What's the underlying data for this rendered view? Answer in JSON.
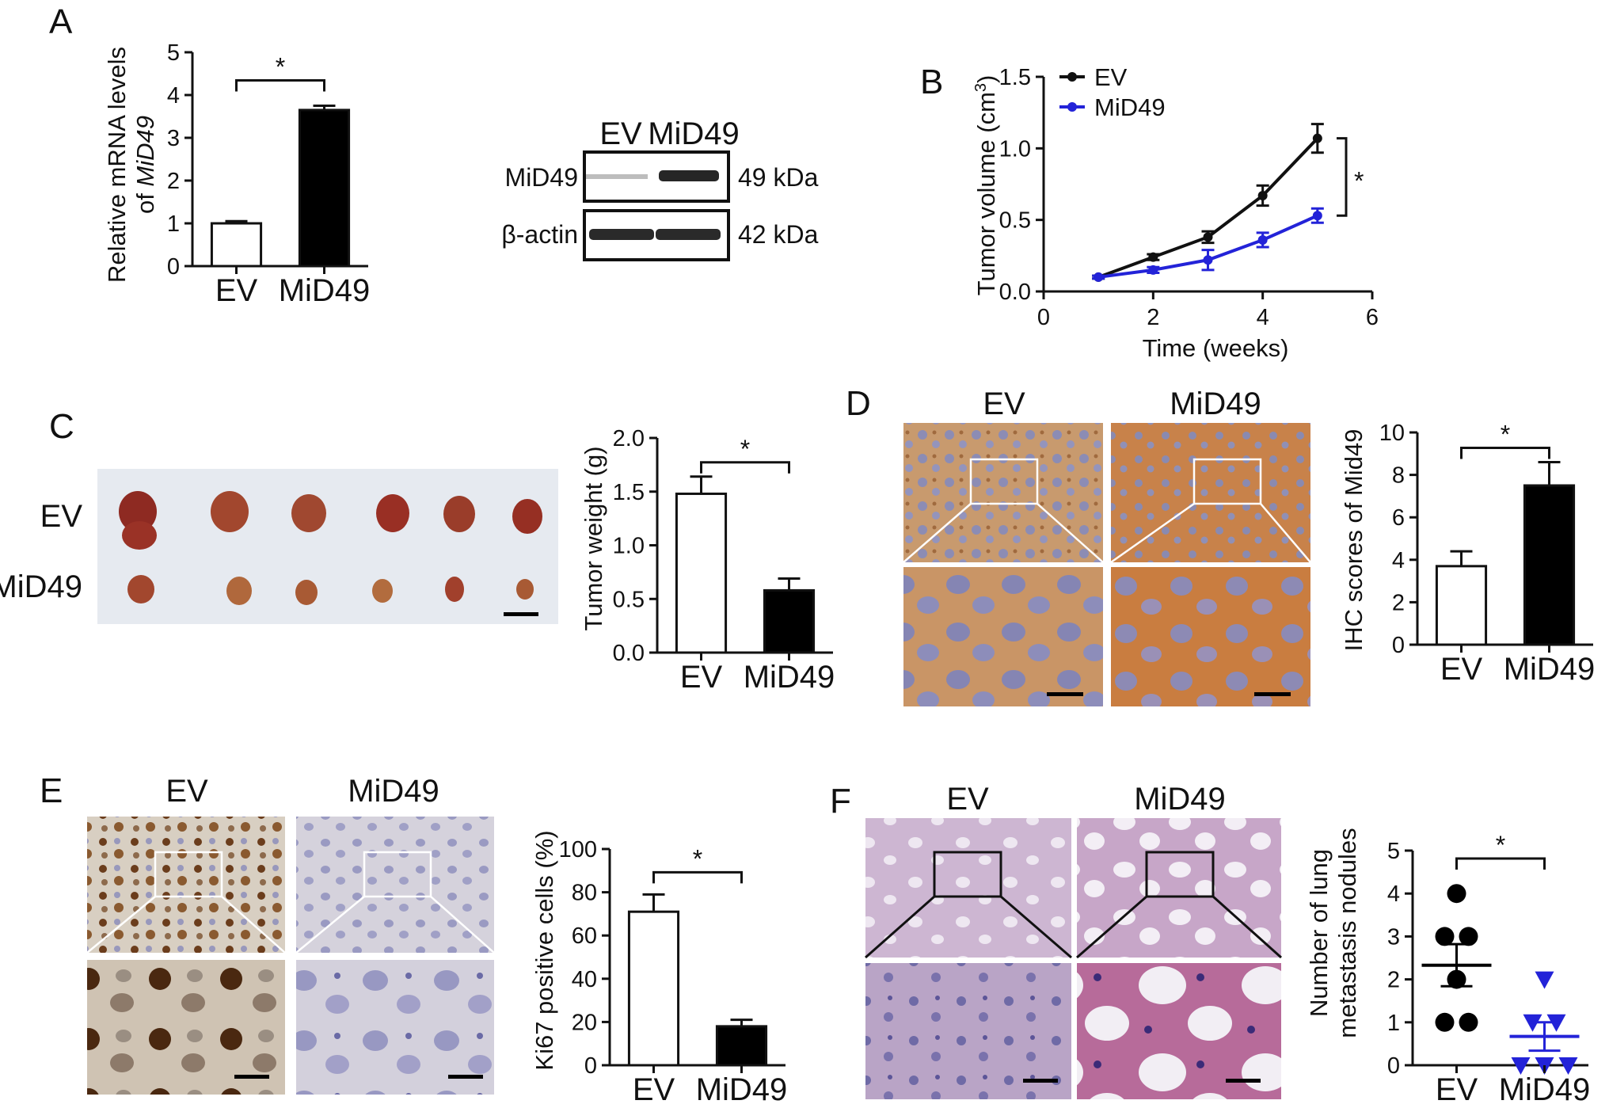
{
  "panel_letters": [
    "A",
    "B",
    "C",
    "D",
    "E",
    "F"
  ],
  "blot": {
    "lanes": [
      "EV",
      "MiD49"
    ],
    "rows": [
      {
        "protein": "MiD49",
        "size": "49 kDa"
      },
      {
        "protein": "β-actin",
        "size": "42 kDa"
      }
    ]
  },
  "photo_labels": {
    "C": {
      "rows": [
        "EV",
        "MiD49"
      ]
    },
    "D": {
      "cols": [
        "EV",
        "MiD49"
      ]
    },
    "E": {
      "cols": [
        "EV",
        "MiD49"
      ]
    },
    "F": {
      "cols": [
        "EV",
        "MiD49"
      ]
    }
  },
  "chart_data": [
    {
      "id": "A",
      "type": "bar",
      "categories": [
        "EV",
        "MiD49"
      ],
      "values": [
        1.0,
        3.65
      ],
      "errors": [
        0.05,
        0.1
      ],
      "fills": [
        "#ffffff",
        "#000000"
      ],
      "ylabel_line1": "Relative mRNA levels",
      "ylabel_line2_prefix": "of ",
      "ylabel_line2_italic": "MiD49",
      "ylim": [
        0,
        5
      ],
      "yticks": [
        "0",
        "1",
        "2",
        "3",
        "4",
        "5"
      ],
      "significance": "*"
    },
    {
      "id": "B",
      "type": "line",
      "xlabel": "Time (weeks)",
      "ylabel_prefix": "Tumor volume (cm",
      "ylabel_sup": "3",
      "ylabel_suffix": ")",
      "xlim": [
        0,
        6
      ],
      "ylim": [
        0,
        1.5
      ],
      "xticks": [
        "0",
        "2",
        "4",
        "6"
      ],
      "yticks": [
        "0.0",
        "0.5",
        "1.0",
        "1.5"
      ],
      "legend_position": "top-left",
      "significance": "*",
      "series": [
        {
          "name": "EV",
          "color": "#111111",
          "x": [
            1,
            2,
            3,
            4,
            5
          ],
          "y": [
            0.1,
            0.24,
            0.38,
            0.67,
            1.07
          ],
          "err": [
            0.01,
            0.02,
            0.04,
            0.07,
            0.1
          ]
        },
        {
          "name": "MiD49",
          "color": "#2323d8",
          "x": [
            1,
            2,
            3,
            4,
            5
          ],
          "y": [
            0.1,
            0.15,
            0.22,
            0.36,
            0.53
          ],
          "err": [
            0.01,
            0.02,
            0.07,
            0.05,
            0.05
          ]
        }
      ]
    },
    {
      "id": "C",
      "type": "bar",
      "categories": [
        "EV",
        "MiD49"
      ],
      "values": [
        1.48,
        0.58
      ],
      "errors": [
        0.16,
        0.11
      ],
      "fills": [
        "#ffffff",
        "#000000"
      ],
      "ylabel": "Tumor weight (g)",
      "ylim": [
        0,
        2.0
      ],
      "yticks": [
        "0.0",
        "0.5",
        "1.0",
        "1.5",
        "2.0"
      ],
      "significance": "*"
    },
    {
      "id": "D",
      "type": "bar",
      "categories": [
        "EV",
        "MiD49"
      ],
      "values": [
        3.7,
        7.5
      ],
      "errors": [
        0.7,
        1.1
      ],
      "fills": [
        "#ffffff",
        "#000000"
      ],
      "ylabel": "IHC scores of Mid49",
      "ylim": [
        0,
        10
      ],
      "yticks": [
        "0",
        "2",
        "4",
        "6",
        "8",
        "10"
      ],
      "significance": "*"
    },
    {
      "id": "E",
      "type": "bar",
      "categories": [
        "EV",
        "MiD49"
      ],
      "values": [
        71,
        18
      ],
      "errors": [
        8,
        3
      ],
      "fills": [
        "#ffffff",
        "#000000"
      ],
      "ylabel": "Ki67 positive cells (%)",
      "ylim": [
        0,
        100
      ],
      "yticks": [
        "0",
        "20",
        "40",
        "60",
        "80",
        "100"
      ],
      "significance": "*"
    },
    {
      "id": "F",
      "type": "scatter",
      "categories": [
        "EV",
        "MiD49"
      ],
      "ylabel_line1": "Number of lung",
      "ylabel_line2": "metastasis nodules",
      "ylim": [
        0,
        5
      ],
      "yticks": [
        "0",
        "1",
        "2",
        "3",
        "4",
        "5"
      ],
      "significance": "*",
      "groups": [
        {
          "name": "EV",
          "color": "#000000",
          "marker": "circle",
          "points": [
            4,
            3,
            3,
            2,
            1,
            1
          ],
          "mean": 2.33,
          "sem": 0.49
        },
        {
          "name": "MiD49",
          "color": "#2323d8",
          "marker": "triangle-down",
          "points": [
            2,
            1,
            1,
            0,
            0,
            0
          ],
          "mean": 0.67,
          "sem": 0.33
        }
      ]
    }
  ]
}
